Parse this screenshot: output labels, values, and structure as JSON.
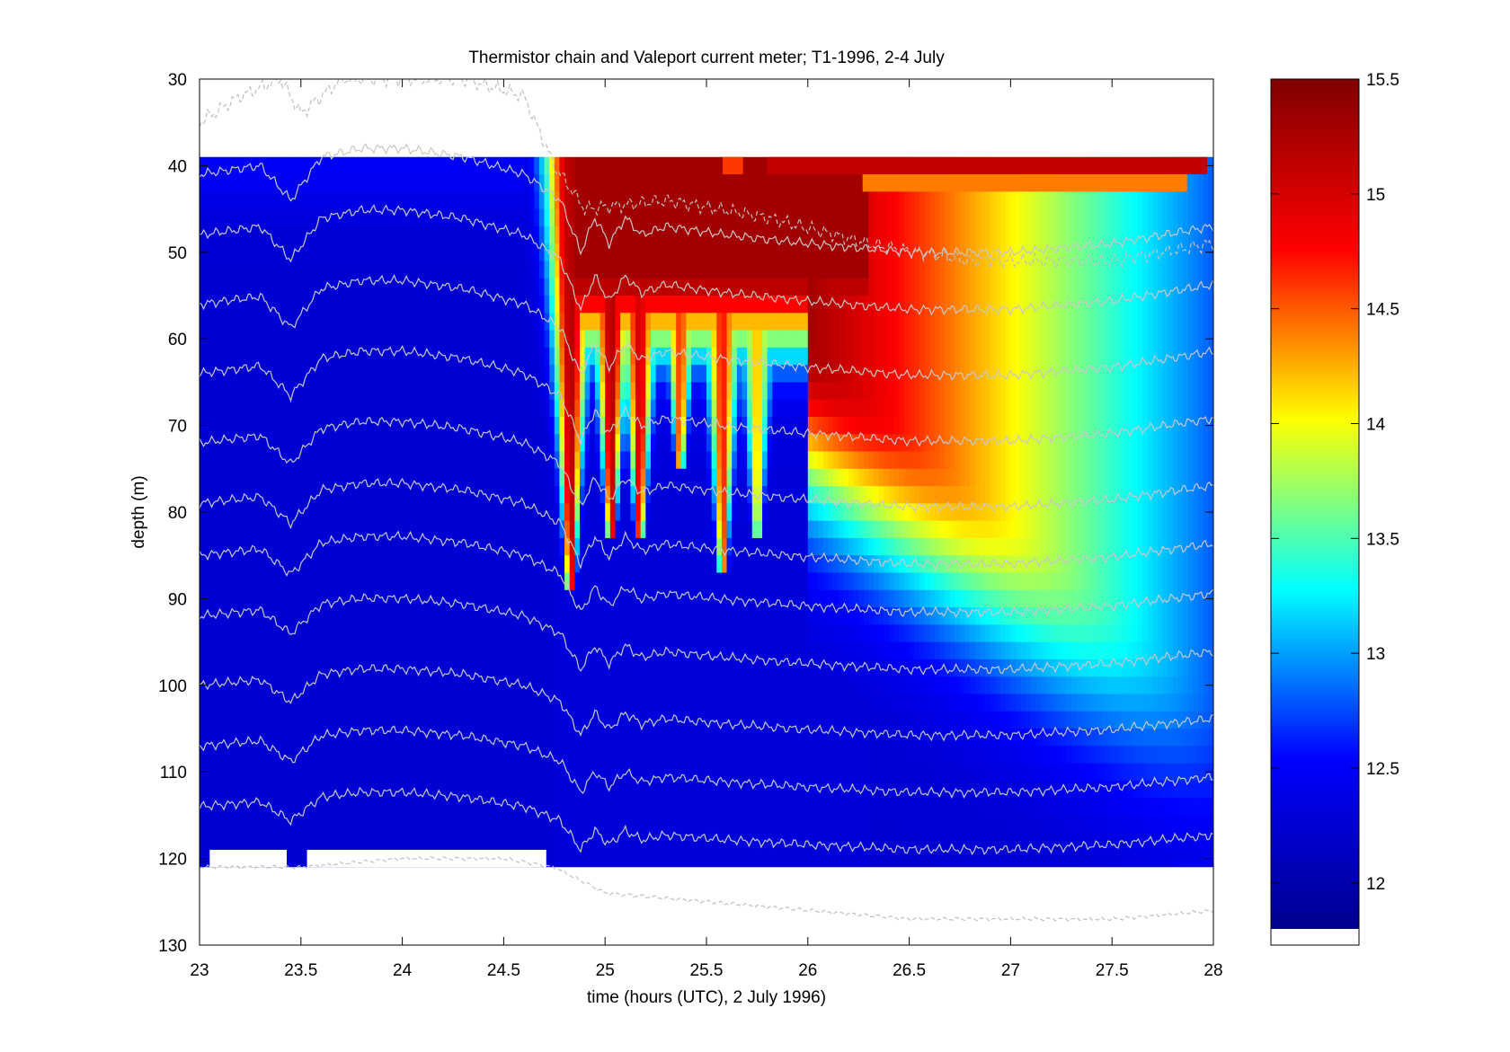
{
  "chart_data": {
    "type": "heatmap",
    "title": "Thermistor chain and Valeport current meter; T1-1996, 2-4 July",
    "xlabel": "time (hours (UTC), 2 July 1996)",
    "ylabel": "depth (m)",
    "xlim": [
      23,
      28
    ],
    "ylim": [
      30,
      130
    ],
    "y_reversed": true,
    "xticks": [
      "23",
      "23.5",
      "24",
      "24.5",
      "25",
      "25.5",
      "26",
      "26.5",
      "27",
      "27.5",
      "28"
    ],
    "xtick_values": [
      23,
      23.5,
      24,
      24.5,
      25,
      25.5,
      26,
      26.5,
      27,
      27.5,
      28
    ],
    "yticks": [
      "30",
      "40",
      "50",
      "60",
      "70",
      "80",
      "90",
      "100",
      "110",
      "120",
      "130"
    ],
    "ytick_values": [
      30,
      40,
      50,
      60,
      70,
      80,
      90,
      100,
      110,
      120,
      130
    ],
    "grid": false,
    "colormap": "jet",
    "colorbar": {
      "range": [
        11.8,
        15.5
      ],
      "ticks": [
        "12",
        "12.5",
        "13",
        "13.5",
        "14",
        "14.5",
        "15",
        "15.5"
      ],
      "tick_values": [
        12,
        12.5,
        13,
        13.5,
        14,
        14.5,
        15,
        15.5
      ],
      "colors": [
        "#00008f",
        "#0000ff",
        "#00ffff",
        "#ffff00",
        "#ff0000",
        "#800000"
      ]
    },
    "thermistor_depth_range": [
      39,
      121
    ],
    "background_temperature": 12.25,
    "warm_intrusion_events": [
      {
        "time": 24.83,
        "max_depth": 88,
        "temperature": 15.2
      },
      {
        "time": 25.03,
        "max_depth": 82,
        "temperature": 15.2
      },
      {
        "time": 25.17,
        "max_depth": 82,
        "temperature": 15.0
      },
      {
        "time": 25.37,
        "max_depth": 74,
        "temperature": 14.6
      },
      {
        "time": 25.58,
        "max_depth": 86,
        "temperature": 14.7
      },
      {
        "time": 25.75,
        "max_depth": 82,
        "temperature": 14.2
      }
    ],
    "isotherm_count": 11,
    "isotherm_base_depths": [
      41,
      48,
      56,
      64,
      72,
      79,
      85,
      92,
      100,
      107,
      114
    ],
    "isotherm_displacement": [
      {
        "time": 23.0,
        "offset": 0
      },
      {
        "time": 23.3,
        "offset": -1
      },
      {
        "time": 23.45,
        "offset": 3
      },
      {
        "time": 23.6,
        "offset": -2
      },
      {
        "time": 23.8,
        "offset": -3
      },
      {
        "time": 24.0,
        "offset": -3
      },
      {
        "time": 24.3,
        "offset": -2
      },
      {
        "time": 24.6,
        "offset": 0
      },
      {
        "time": 24.78,
        "offset": 3
      },
      {
        "time": 24.88,
        "offset": 9
      },
      {
        "time": 24.95,
        "offset": 5
      },
      {
        "time": 25.02,
        "offset": 8
      },
      {
        "time": 25.1,
        "offset": 5
      },
      {
        "time": 25.18,
        "offset": 7
      },
      {
        "time": 25.3,
        "offset": 6
      },
      {
        "time": 25.6,
        "offset": 7
      },
      {
        "time": 26.0,
        "offset": 8
      },
      {
        "time": 26.5,
        "offset": 9
      },
      {
        "time": 27.0,
        "offset": 9
      },
      {
        "time": 27.5,
        "offset": 8
      },
      {
        "time": 28.0,
        "offset": 6
      }
    ],
    "surface_trace": [
      {
        "time": 23.0,
        "depth": 35
      },
      {
        "time": 23.2,
        "depth": 32
      },
      {
        "time": 23.4,
        "depth": 30
      },
      {
        "time": 23.5,
        "depth": 34
      },
      {
        "time": 23.7,
        "depth": 30
      },
      {
        "time": 24.0,
        "depth": 30
      },
      {
        "time": 24.3,
        "depth": 30
      },
      {
        "time": 24.6,
        "depth": 32
      },
      {
        "time": 24.75,
        "depth": 40
      },
      {
        "time": 24.9,
        "depth": 45
      },
      {
        "time": 25.3,
        "depth": 44
      },
      {
        "time": 25.8,
        "depth": 46
      },
      {
        "time": 26.3,
        "depth": 49
      },
      {
        "time": 26.8,
        "depth": 51
      },
      {
        "time": 27.5,
        "depth": 51
      },
      {
        "time": 28.0,
        "depth": 49
      }
    ],
    "bottom_trace": [
      {
        "time": 23.0,
        "depth": 121
      },
      {
        "time": 23.5,
        "depth": 121
      },
      {
        "time": 24.0,
        "depth": 120
      },
      {
        "time": 24.5,
        "depth": 120
      },
      {
        "time": 24.75,
        "depth": 121
      },
      {
        "time": 25.0,
        "depth": 124
      },
      {
        "time": 25.5,
        "depth": 125
      },
      {
        "time": 26.0,
        "depth": 126
      },
      {
        "time": 26.5,
        "depth": 127
      },
      {
        "time": 27.0,
        "depth": 127
      },
      {
        "time": 27.5,
        "depth": 127
      },
      {
        "time": 28.0,
        "depth": 126
      }
    ],
    "current_meter_segments": [
      {
        "start": 25.58,
        "end": 25.68,
        "depth_top": 39,
        "depth_bottom": 41,
        "temperature": 14.6
      },
      {
        "start": 25.8,
        "end": 27.97,
        "depth_top": 39,
        "depth_bottom": 41,
        "temperature": 15.1
      },
      {
        "start": 26.27,
        "end": 27.87,
        "depth_top": 41,
        "depth_bottom": 43,
        "temperature": 14.4
      }
    ],
    "bottom_data_gaps": [
      {
        "start": 23.05,
        "end": 23.43
      },
      {
        "start": 23.53,
        "end": 24.71
      }
    ]
  }
}
